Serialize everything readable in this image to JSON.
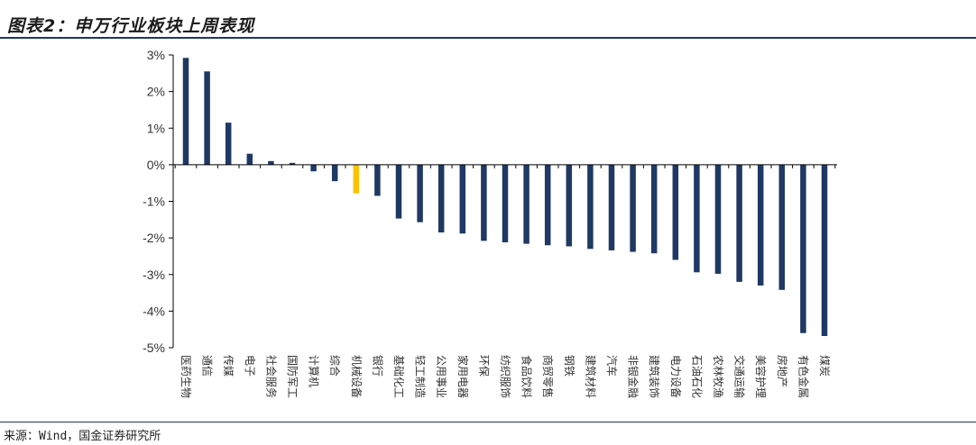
{
  "header": {
    "title": "图表2：申万行业板块上周表现"
  },
  "footer": {
    "source": "来源：Wind，国金证券研究所"
  },
  "colors": {
    "bar": "#1f3864",
    "highlight": "#ffc000",
    "axis": "#000000"
  },
  "chart_data": {
    "type": "bar",
    "title": "申万行业板块上周表现",
    "ylabel": "",
    "xlabel": "",
    "ylim": [
      -5,
      3
    ],
    "yticks": [
      3,
      2,
      1,
      0,
      -1,
      -2,
      -3,
      -4,
      -5
    ],
    "ytick_labels": [
      "3%",
      "2%",
      "1%",
      "0%",
      "-1%",
      "-2%",
      "-3%",
      "-4%",
      "-5%"
    ],
    "highlight_category": "机械设备",
    "categories": [
      "医药生物",
      "通信",
      "传媒",
      "电子",
      "社会服务",
      "国防军工",
      "计算机",
      "综合",
      "机械设备",
      "银行",
      "基础化工",
      "轻工制造",
      "公用事业",
      "家用电器",
      "环保",
      "纺织服饰",
      "食品饮料",
      "商贸零售",
      "钢铁",
      "建筑材料",
      "汽车",
      "非银金融",
      "建筑装饰",
      "电力设备",
      "石油石化",
      "农林牧渔",
      "交通运输",
      "美容护理",
      "房地产",
      "有色金属",
      "煤炭"
    ],
    "values": [
      2.92,
      2.55,
      1.15,
      0.3,
      0.1,
      0.05,
      -0.18,
      -0.45,
      -0.78,
      -0.85,
      -1.47,
      -1.57,
      -1.85,
      -1.88,
      -2.08,
      -2.12,
      -2.16,
      -2.2,
      -2.23,
      -2.3,
      -2.34,
      -2.38,
      -2.42,
      -2.6,
      -2.94,
      -2.98,
      -3.2,
      -3.3,
      -3.42,
      -4.6,
      -4.68
    ]
  }
}
